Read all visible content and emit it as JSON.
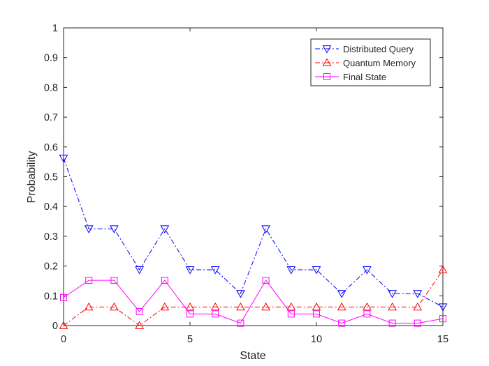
{
  "chart_data": {
    "type": "line",
    "xlabel": "State",
    "ylabel": "Probability",
    "xlim": [
      0,
      15
    ],
    "ylim": [
      0,
      1
    ],
    "xticks": [
      0,
      5,
      10,
      15
    ],
    "yticks": [
      0,
      0.1,
      0.2,
      0.3,
      0.4,
      0.5,
      0.6,
      0.7,
      0.8,
      0.9,
      1
    ],
    "grid": false,
    "legend_position": "top-right",
    "x": [
      0,
      1,
      2,
      3,
      4,
      5,
      6,
      7,
      8,
      9,
      10,
      11,
      12,
      13,
      14,
      15
    ],
    "series": [
      {
        "name": "Distributed Query",
        "color": "#0000ff",
        "line_style": "dash-dot",
        "marker": "triangle-down",
        "values": [
          0.5625,
          0.325,
          0.325,
          0.1875,
          0.325,
          0.1875,
          0.1875,
          0.1075,
          0.325,
          0.1875,
          0.1875,
          0.1075,
          0.1875,
          0.1075,
          0.1075,
          0.0625
        ]
      },
      {
        "name": "Quantum Memory",
        "color": "#ff0000",
        "line_style": "dash-dot",
        "marker": "triangle-up",
        "values": [
          0,
          0.0625,
          0.0625,
          0,
          0.0625,
          0.0625,
          0.0625,
          0.0625,
          0.0625,
          0.0625,
          0.0625,
          0.0625,
          0.0625,
          0.0625,
          0.0625,
          0.1875
        ]
      },
      {
        "name": "Final State",
        "color": "#ff00ff",
        "line_style": "solid",
        "marker": "square",
        "values": [
          0.094,
          0.152,
          0.152,
          0.047,
          0.152,
          0.039,
          0.039,
          0.008,
          0.152,
          0.039,
          0.039,
          0.008,
          0.039,
          0.008,
          0.008,
          0.023
        ]
      }
    ]
  }
}
